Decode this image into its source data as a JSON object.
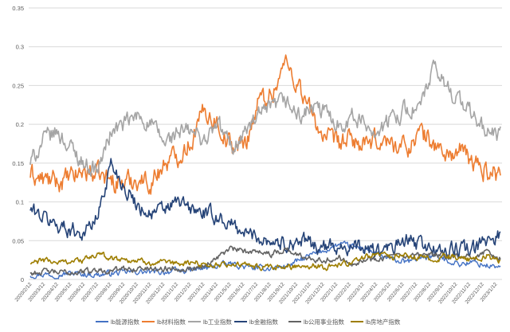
{
  "chart_data": {
    "type": "line",
    "title": "",
    "xlabel": "",
    "ylabel": "",
    "ylim": [
      0,
      0.35
    ],
    "yticks": [
      "0",
      "0.05",
      "0.1",
      "0.15",
      "0.2",
      "0.25",
      "0.3",
      "0.35"
    ],
    "ytick_values": [
      0,
      0.05,
      0.1,
      0.15,
      0.2,
      0.25,
      0.3,
      0.35
    ],
    "grid": "horizontal",
    "legend_position": "bottom",
    "x_labels": [
      "2020/2/12",
      "2020/3/12",
      "2020/4/12",
      "2020/5/12",
      "2020/6/12",
      "2020/7/12",
      "2020/8/12",
      "2020/9/12",
      "2020/10/12",
      "2020/11/12",
      "2020/12/12",
      "2021/1/12",
      "2021/2/12",
      "2021/3/12",
      "2021/4/12",
      "2021/5/12",
      "2021/6/12",
      "2021/7/12",
      "2021/8/12",
      "2021/9/12",
      "2021/10/12",
      "2021/11/12",
      "2021/12/12",
      "2022/1/12",
      "2022/2/12",
      "2022/3/12",
      "2022/4/12",
      "2022/5/12",
      "2022/6/12",
      "2022/7/12",
      "2022/8/12",
      "2022/9/12",
      "2022/10/12",
      "2022/11/12",
      "2022/12/12",
      "2023/1/12"
    ],
    "series": [
      {
        "name": "lb能源指数",
        "color": "#4472c4",
        "width": 1.4,
        "values": [
          0.006,
          0.007,
          0.006,
          0.008,
          0.007,
          0.006,
          0.008,
          0.009,
          0.01,
          0.009,
          0.01,
          0.011,
          0.012,
          0.014,
          0.018,
          0.02,
          0.016,
          0.014,
          0.015,
          0.017,
          0.024,
          0.032,
          0.038,
          0.045,
          0.042,
          0.04,
          0.03,
          0.025,
          0.022,
          0.028,
          0.03,
          0.025,
          0.02,
          0.022,
          0.018,
          0.016
        ]
      },
      {
        "name": "lb材料指数",
        "color": "#ed7d31",
        "width": 1.6,
        "values": [
          0.135,
          0.128,
          0.125,
          0.13,
          0.14,
          0.135,
          0.128,
          0.125,
          0.13,
          0.125,
          0.15,
          0.16,
          0.18,
          0.22,
          0.2,
          0.17,
          0.175,
          0.23,
          0.24,
          0.28,
          0.25,
          0.21,
          0.18,
          0.175,
          0.18,
          0.17,
          0.18,
          0.175,
          0.17,
          0.19,
          0.175,
          0.16,
          0.165,
          0.15,
          0.14,
          0.135
        ]
      },
      {
        "name": "lb工业指数",
        "color": "#a5a5a5",
        "width": 1.6,
        "values": [
          0.15,
          0.18,
          0.19,
          0.17,
          0.15,
          0.14,
          0.19,
          0.2,
          0.21,
          0.2,
          0.175,
          0.19,
          0.19,
          0.18,
          0.2,
          0.17,
          0.19,
          0.21,
          0.22,
          0.23,
          0.21,
          0.22,
          0.215,
          0.2,
          0.21,
          0.2,
          0.19,
          0.21,
          0.22,
          0.22,
          0.27,
          0.25,
          0.23,
          0.21,
          0.19,
          0.185
        ]
      },
      {
        "name": "lb金融指数",
        "color": "#264478",
        "width": 1.6,
        "values": [
          0.09,
          0.08,
          0.07,
          0.065,
          0.06,
          0.08,
          0.15,
          0.12,
          0.095,
          0.085,
          0.09,
          0.1,
          0.09,
          0.085,
          0.08,
          0.07,
          0.06,
          0.055,
          0.05,
          0.045,
          0.05,
          0.045,
          0.04,
          0.045,
          0.04,
          0.04,
          0.035,
          0.04,
          0.05,
          0.045,
          0.04,
          0.035,
          0.04,
          0.038,
          0.05,
          0.06
        ]
      },
      {
        "name": "lb公用事业指数",
        "color": "#636363",
        "width": 1.6,
        "values": [
          0.008,
          0.01,
          0.009,
          0.009,
          0.01,
          0.012,
          0.012,
          0.013,
          0.014,
          0.014,
          0.014,
          0.015,
          0.014,
          0.018,
          0.03,
          0.04,
          0.035,
          0.038,
          0.032,
          0.04,
          0.03,
          0.028,
          0.025,
          0.028,
          0.022,
          0.025,
          0.028,
          0.03,
          0.028,
          0.03,
          0.032,
          0.03,
          0.028,
          0.03,
          0.035,
          0.028
        ]
      },
      {
        "name": "lb房地产指数",
        "color": "#9e7e00",
        "width": 1.6,
        "values": [
          0.02,
          0.025,
          0.022,
          0.024,
          0.025,
          0.032,
          0.028,
          0.026,
          0.024,
          0.022,
          0.02,
          0.02,
          0.022,
          0.02,
          0.018,
          0.02,
          0.018,
          0.016,
          0.014,
          0.016,
          0.018,
          0.018,
          0.016,
          0.02,
          0.022,
          0.03,
          0.035,
          0.028,
          0.03,
          0.028,
          0.025,
          0.03,
          0.028,
          0.025,
          0.03,
          0.022
        ]
      }
    ]
  }
}
